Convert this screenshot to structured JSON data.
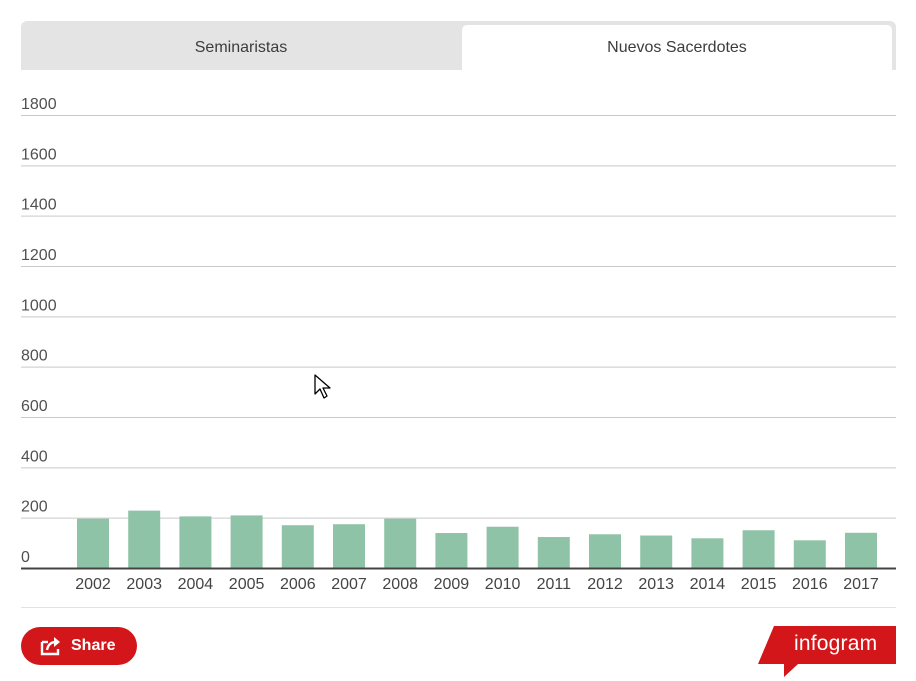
{
  "tabs": [
    {
      "label": "Seminaristas",
      "active": false
    },
    {
      "label": "Nuevos Sacerdotes",
      "active": true
    }
  ],
  "chart_data": {
    "type": "bar",
    "categories": [
      "2002",
      "2003",
      "2004",
      "2005",
      "2006",
      "2007",
      "2008",
      "2009",
      "2010",
      "2011",
      "2012",
      "2013",
      "2014",
      "2015",
      "2016",
      "2017"
    ],
    "values": [
      196,
      228,
      205,
      209,
      170,
      174,
      196,
      139,
      164,
      123,
      134,
      129,
      118,
      150,
      110,
      140
    ],
    "yticks": [
      "0",
      "200",
      "400",
      "600",
      "800",
      "1000",
      "1200",
      "1400",
      "1600",
      "1800"
    ],
    "ylim": [
      0,
      1800
    ],
    "grid": true,
    "bar_color": "#8fc3a7"
  },
  "footer": {
    "share_label": "Share",
    "brand": "infogram",
    "brand_color": "#d3161a"
  }
}
